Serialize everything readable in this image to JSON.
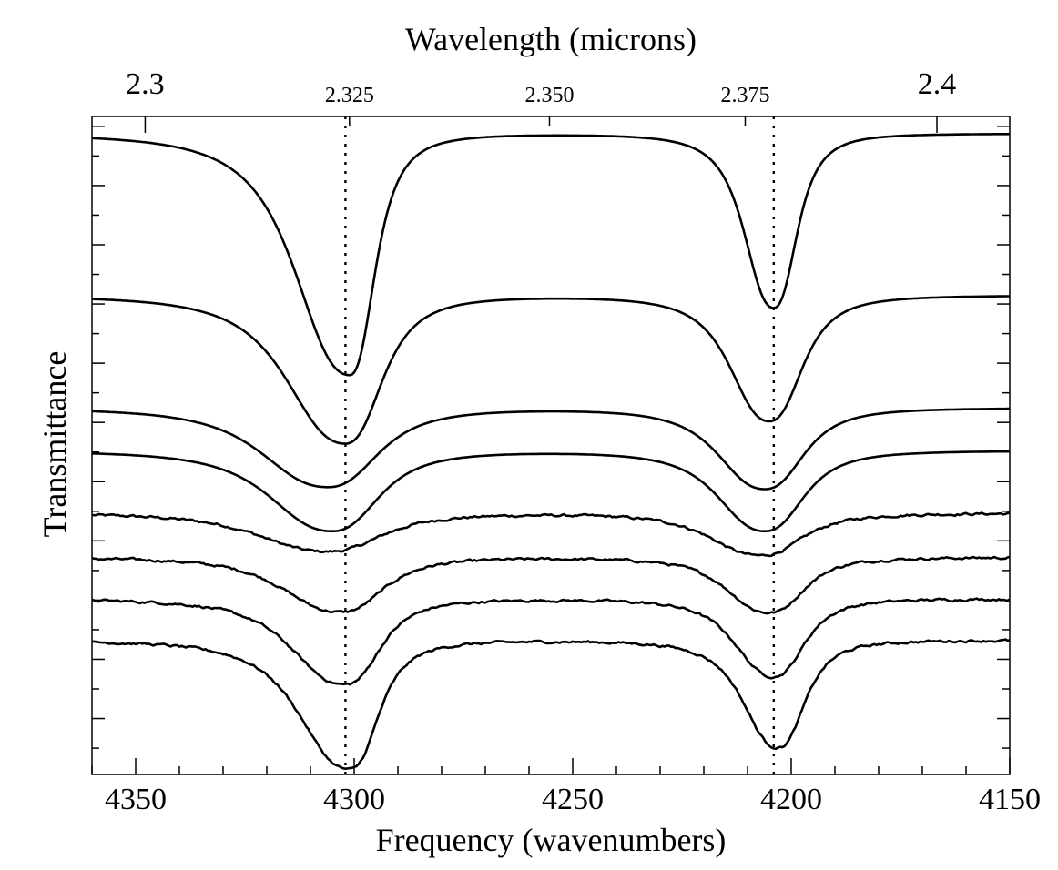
{
  "chart_data": {
    "type": "line",
    "title": "",
    "xlabel": "Frequency (wavenumbers)",
    "ylabel": "Transmittance",
    "top_xlabel": "Wavelength (microns)",
    "xlim": [
      4360,
      4150
    ],
    "ylim": [
      0,
      1
    ],
    "grid": false,
    "legend": "none",
    "x_ticks": [
      {
        "value": 4350,
        "label": "4350"
      },
      {
        "value": 4300,
        "label": "4300"
      },
      {
        "value": 4250,
        "label": "4250"
      },
      {
        "value": 4200,
        "label": "4200"
      },
      {
        "value": 4150,
        "label": "4150"
      }
    ],
    "top_ticks": [
      {
        "value": 2.3,
        "label": "2.3",
        "size": "large"
      },
      {
        "value": 2.325,
        "label": "2.325",
        "size": "small"
      },
      {
        "value": 2.35,
        "label": "2.350",
        "size": "small"
      },
      {
        "value": 2.375,
        "label": "2.375",
        "size": "small"
      },
      {
        "value": 2.4,
        "label": "2.4",
        "size": "large"
      }
    ],
    "reference_lines": [
      4302,
      4204
    ],
    "series": [
      {
        "baseline": 0.974,
        "dips": [
          {
            "center": 4301,
            "depth": 0.367,
            "left_width": 14,
            "right_width": 6.5
          },
          {
            "center": 4204,
            "depth": 0.265,
            "left_width": 7.5,
            "right_width": 6
          }
        ],
        "noise": 0
      },
      {
        "baseline": 0.728,
        "dips": [
          {
            "center": 4302,
            "depth": 0.225,
            "left_width": 15,
            "right_width": 9.5
          },
          {
            "center": 4205,
            "depth": 0.191,
            "left_width": 10,
            "right_width": 8.5
          }
        ],
        "noise": 0
      },
      {
        "baseline": 0.557,
        "dips": [
          {
            "center": 4306,
            "depth": 0.12,
            "left_width": 17,
            "right_width": 13
          },
          {
            "center": 4206,
            "depth": 0.123,
            "left_width": 12,
            "right_width": 10
          }
        ],
        "noise": 0
      },
      {
        "baseline": 0.492,
        "dips": [
          {
            "center": 4305,
            "depth": 0.122,
            "left_width": 16,
            "right_width": 12
          },
          {
            "center": 4206,
            "depth": 0.122,
            "left_width": 12,
            "right_width": 10
          }
        ],
        "noise": 0
      },
      {
        "baseline": 0.397,
        "dips": [
          {
            "center": 4306,
            "depth": 0.058,
            "left_width": 18,
            "right_width": 14
          },
          {
            "center": 4207,
            "depth": 0.064,
            "left_width": 13,
            "right_width": 11
          }
        ],
        "noise": 0.003
      },
      {
        "baseline": 0.33,
        "dips": [
          {
            "center": 4303,
            "depth": 0.083,
            "left_width": 15,
            "right_width": 11
          },
          {
            "center": 4205,
            "depth": 0.084,
            "left_width": 11,
            "right_width": 9
          }
        ],
        "noise": 0.003
      },
      {
        "baseline": 0.267,
        "dips": [
          {
            "center": 4302,
            "depth": 0.13,
            "left_width": 14,
            "right_width": 9
          },
          {
            "center": 4204,
            "depth": 0.118,
            "left_width": 10,
            "right_width": 8
          }
        ],
        "noise": 0.003
      },
      {
        "baseline": 0.204,
        "dips": [
          {
            "center": 4301,
            "depth": 0.196,
            "left_width": 13,
            "right_width": 7.5
          },
          {
            "center": 4203,
            "depth": 0.163,
            "left_width": 9,
            "right_width": 7
          }
        ],
        "noise": 0.003
      }
    ]
  }
}
